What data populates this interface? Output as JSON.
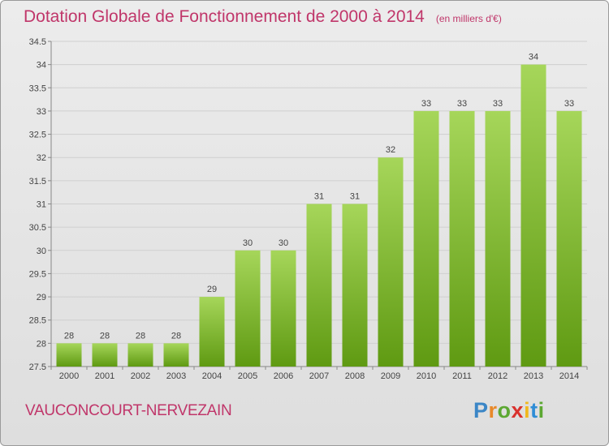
{
  "header": {
    "title": "Dotation Globale de Fonctionnement de 2000 à 2014",
    "subtitle": "(en milliers d'€)"
  },
  "footer": {
    "commune": "VAUCONCOURT-NERVEZAIN",
    "logo_text": "Proxiti"
  },
  "colors": {
    "title": "#c0366a",
    "bar_light": "#a6d65a",
    "bar_dark": "#5f9a12",
    "grid": "#cfcfcf"
  },
  "chart_data": {
    "type": "bar",
    "title": "Dotation Globale de Fonctionnement de 2000 à 2014",
    "subtitle": "(en milliers d'€)",
    "xlabel": "",
    "ylabel": "",
    "categories": [
      "2000",
      "2001",
      "2002",
      "2003",
      "2004",
      "2005",
      "2006",
      "2007",
      "2008",
      "2009",
      "2010",
      "2011",
      "2012",
      "2013",
      "2014"
    ],
    "values": [
      28,
      28,
      28,
      28,
      29,
      30,
      30,
      31,
      31,
      32,
      33,
      33,
      33,
      34,
      33
    ],
    "labels": [
      "28",
      "28",
      "28",
      "28",
      "29",
      "30",
      "30",
      "31",
      "31",
      "32",
      "33",
      "33",
      "33",
      "34",
      "33"
    ],
    "ylim": [
      27.5,
      34.5
    ],
    "yticks": [
      "27.5",
      "28",
      "28.5",
      "29",
      "29.5",
      "30",
      "30.5",
      "31",
      "31.5",
      "32",
      "32.5",
      "33",
      "33.5",
      "34",
      "34.5"
    ],
    "grid": true,
    "legend": "none"
  }
}
